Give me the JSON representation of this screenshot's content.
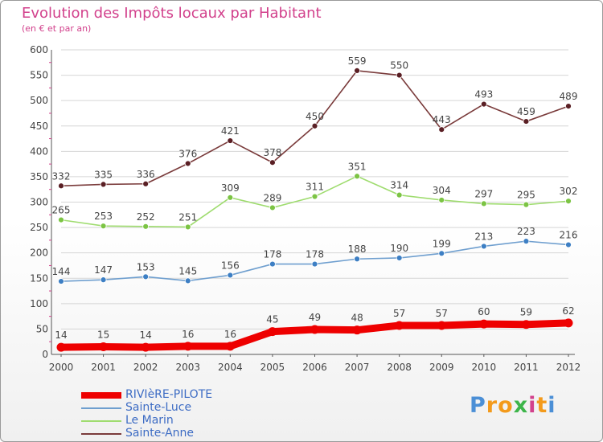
{
  "header": {
    "title": "Evolution des Impôts locaux par Habitant",
    "subtitle": "(en € et par an)"
  },
  "logo": {
    "text": "Proxiti"
  },
  "colors": {
    "title": "#d2418c",
    "axis_text": "#444444",
    "legend_text": "#3d6cc4",
    "grid": "#d6d6d6"
  },
  "chart_data": {
    "type": "line",
    "title": "Evolution des Impôts locaux par Habitant",
    "subtitle": "(en € et par an)",
    "xlabel": "",
    "ylabel": "",
    "x": [
      "2000",
      "2001",
      "2002",
      "2003",
      "2004",
      "2005",
      "2006",
      "2007",
      "2008",
      "2009",
      "2010",
      "2011",
      "2012"
    ],
    "ylim": [
      0,
      600
    ],
    "yticks": [
      0,
      50,
      100,
      150,
      200,
      250,
      300,
      350,
      400,
      450,
      500,
      550,
      600
    ],
    "grid": true,
    "legend_position": "bottom-left",
    "series": [
      {
        "name": "RIVIèRE-PILOTE",
        "color": "#ee0000",
        "marker": "#ee0000",
        "bold": true,
        "values": [
          14,
          15,
          14,
          16,
          16,
          45,
          49,
          48,
          57,
          57,
          60,
          59,
          62
        ]
      },
      {
        "name": "Sainte-Luce",
        "color": "#6f9fcf",
        "marker": "#3d7fc4",
        "bold": false,
        "values": [
          144,
          147,
          153,
          145,
          156,
          178,
          178,
          188,
          190,
          199,
          213,
          223,
          216
        ]
      },
      {
        "name": "Le Marin",
        "color": "#9fdc6f",
        "marker": "#7cc444",
        "bold": false,
        "values": [
          265,
          253,
          252,
          251,
          309,
          289,
          311,
          351,
          314,
          304,
          297,
          295,
          302
        ]
      },
      {
        "name": "Sainte-Anne",
        "color": "#7a3b3b",
        "marker": "#5a1f24",
        "bold": false,
        "values": [
          332,
          335,
          336,
          376,
          421,
          378,
          450,
          559,
          550,
          443,
          493,
          459,
          489
        ]
      }
    ]
  }
}
